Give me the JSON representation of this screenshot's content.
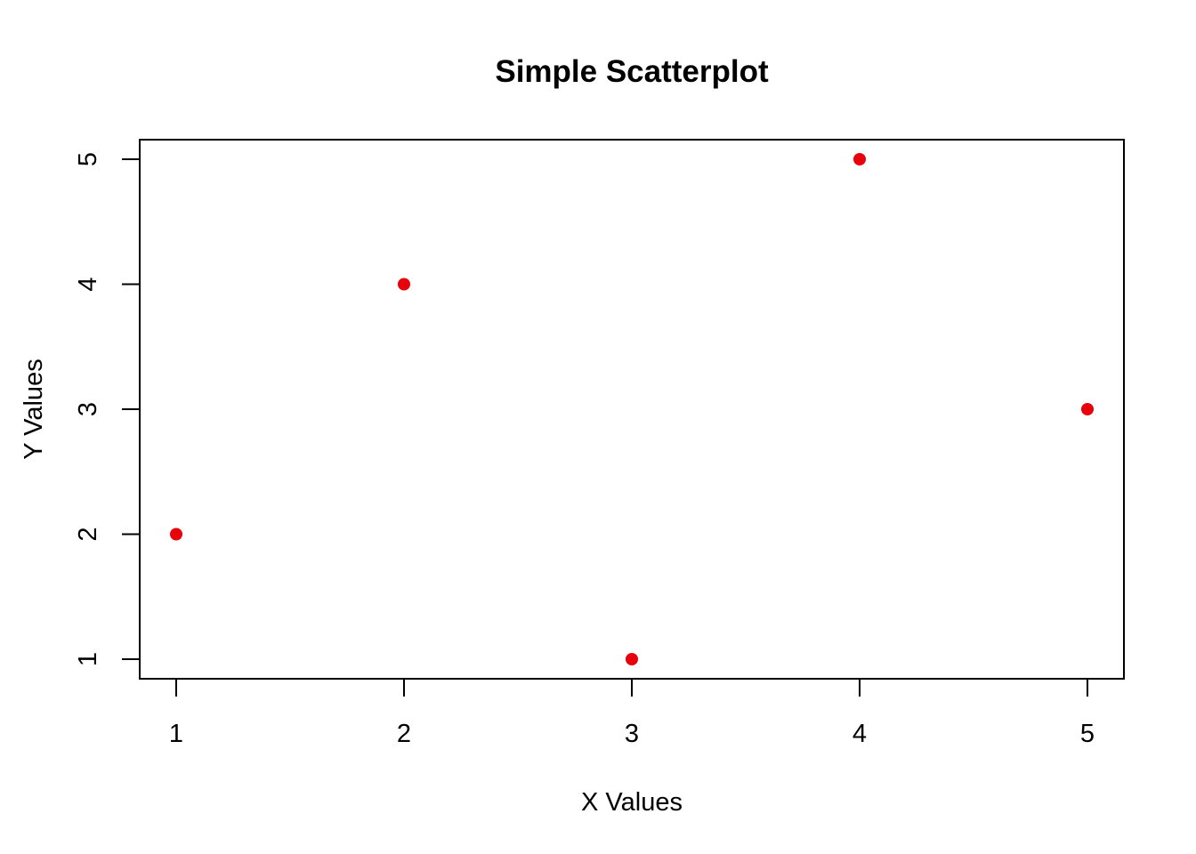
{
  "chart_data": {
    "type": "scatter",
    "title": "Simple Scatterplot",
    "xlabel": "X Values",
    "ylabel": "Y Values",
    "x": [
      1,
      2,
      3,
      4,
      5
    ],
    "y": [
      2,
      4,
      1,
      5,
      3
    ],
    "xlim": [
      1,
      5
    ],
    "ylim": [
      1,
      5
    ],
    "xticks": [
      1,
      2,
      3,
      4,
      5
    ],
    "yticks": [
      1,
      2,
      3,
      4,
      5
    ],
    "grid": false,
    "point_color": "#e8000b",
    "point_shape": "filled-circle"
  }
}
